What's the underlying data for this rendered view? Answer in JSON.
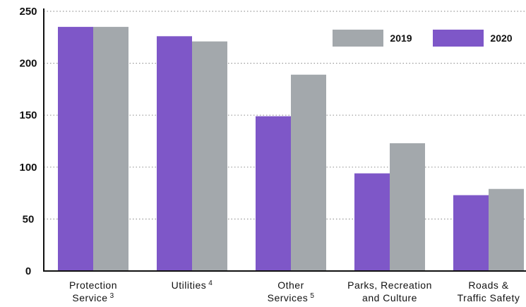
{
  "chart_data": {
    "type": "bar",
    "categories": [
      [
        "Protection",
        "Service"
      ],
      [
        "Utilities"
      ],
      [
        "Other",
        "Services"
      ],
      [
        "Parks, Recreation",
        "and Culture"
      ],
      [
        "Roads &",
        "Traffic Safety"
      ]
    ],
    "category_notes": [
      "3",
      "4",
      "5",
      null,
      null
    ],
    "series": [
      {
        "name": "2019",
        "color": "#a3a8ac",
        "values": [
          235,
          221,
          189,
          123,
          79
        ]
      },
      {
        "name": "2020",
        "color": "#7e57c8",
        "values": [
          235,
          226,
          149,
          94,
          73
        ]
      }
    ],
    "ylim": [
      0,
      250
    ],
    "yticks": [
      0,
      50,
      100,
      150,
      200,
      250
    ],
    "grid": true,
    "legend": "top-right"
  }
}
